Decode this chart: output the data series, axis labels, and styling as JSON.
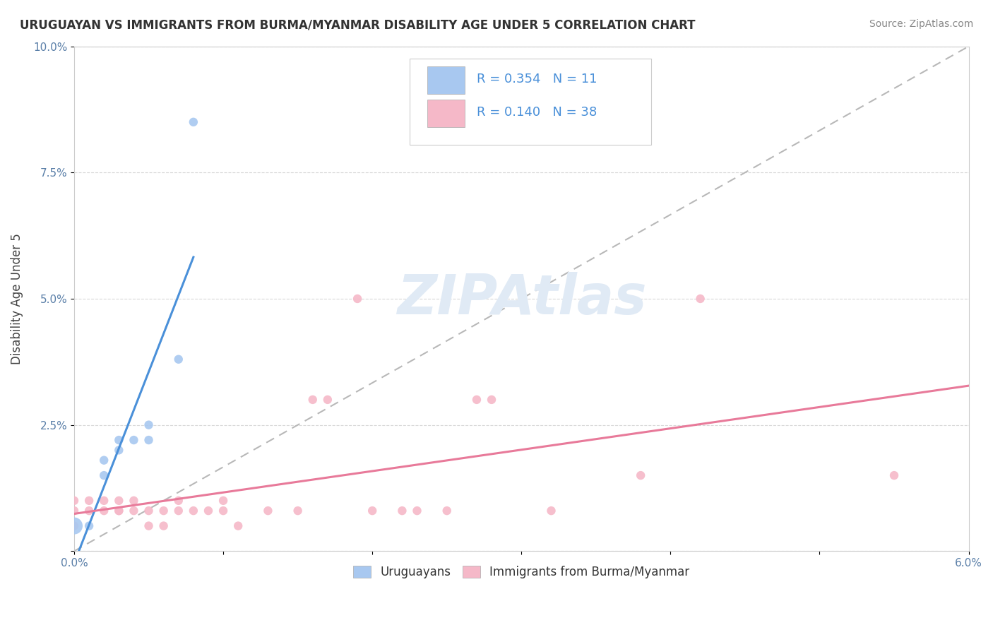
{
  "title": "URUGUAYAN VS IMMIGRANTS FROM BURMA/MYANMAR DISABILITY AGE UNDER 5 CORRELATION CHART",
  "source": "Source: ZipAtlas.com",
  "ylabel": "Disability Age Under 5",
  "xlim": [
    0.0,
    0.06
  ],
  "ylim": [
    0.0,
    0.1
  ],
  "xticks": [
    0.0,
    0.01,
    0.02,
    0.03,
    0.04,
    0.05,
    0.06
  ],
  "xticklabels": [
    "0.0%",
    "",
    "",
    "",
    "",
    "",
    "6.0%"
  ],
  "yticks": [
    0.0,
    0.025,
    0.05,
    0.075,
    0.1
  ],
  "yticklabels": [
    "",
    "2.5%",
    "5.0%",
    "7.5%",
    "10.0%"
  ],
  "legend_labels": [
    "Uruguayans",
    "Immigrants from Burma/Myanmar"
  ],
  "uruguayan_R": "0.354",
  "uruguayan_N": "11",
  "myanmar_R": "0.140",
  "myanmar_N": "38",
  "blue_color": "#a8c8f0",
  "pink_color": "#f5b8c8",
  "blue_line_color": "#4a90d9",
  "pink_line_color": "#e87a9a",
  "dashed_line_color": "#b8b8b8",
  "background_color": "#ffffff",
  "watermark": "ZIPAtlas",
  "uruguayan_points": [
    [
      0.0,
      0.005
    ],
    [
      0.001,
      0.005
    ],
    [
      0.002,
      0.015
    ],
    [
      0.002,
      0.018
    ],
    [
      0.003,
      0.02
    ],
    [
      0.003,
      0.022
    ],
    [
      0.004,
      0.022
    ],
    [
      0.005,
      0.025
    ],
    [
      0.005,
      0.022
    ],
    [
      0.007,
      0.038
    ],
    [
      0.008,
      0.085
    ]
  ],
  "myanmar_points": [
    [
      0.0,
      0.01
    ],
    [
      0.0,
      0.008
    ],
    [
      0.0,
      0.005
    ],
    [
      0.001,
      0.01
    ],
    [
      0.001,
      0.008
    ],
    [
      0.002,
      0.008
    ],
    [
      0.002,
      0.01
    ],
    [
      0.003,
      0.008
    ],
    [
      0.003,
      0.01
    ],
    [
      0.003,
      0.008
    ],
    [
      0.004,
      0.008
    ],
    [
      0.004,
      0.01
    ],
    [
      0.005,
      0.008
    ],
    [
      0.005,
      0.005
    ],
    [
      0.006,
      0.008
    ],
    [
      0.006,
      0.005
    ],
    [
      0.007,
      0.01
    ],
    [
      0.007,
      0.008
    ],
    [
      0.008,
      0.008
    ],
    [
      0.009,
      0.008
    ],
    [
      0.01,
      0.01
    ],
    [
      0.01,
      0.008
    ],
    [
      0.011,
      0.005
    ],
    [
      0.013,
      0.008
    ],
    [
      0.015,
      0.008
    ],
    [
      0.016,
      0.03
    ],
    [
      0.017,
      0.03
    ],
    [
      0.019,
      0.05
    ],
    [
      0.02,
      0.008
    ],
    [
      0.022,
      0.008
    ],
    [
      0.023,
      0.008
    ],
    [
      0.025,
      0.008
    ],
    [
      0.027,
      0.03
    ],
    [
      0.028,
      0.03
    ],
    [
      0.032,
      0.008
    ],
    [
      0.038,
      0.015
    ],
    [
      0.042,
      0.05
    ],
    [
      0.055,
      0.015
    ]
  ],
  "uruguayan_sizes": [
    300,
    80,
    80,
    80,
    80,
    80,
    80,
    80,
    80,
    80,
    80
  ],
  "myanmar_sizes": [
    80,
    80,
    80,
    80,
    80,
    80,
    80,
    80,
    80,
    80,
    80,
    80,
    80,
    80,
    80,
    80,
    80,
    80,
    80,
    80,
    80,
    80,
    80,
    80,
    80,
    80,
    80,
    80,
    80,
    80,
    80,
    80,
    80,
    80,
    80,
    80,
    80,
    80
  ]
}
